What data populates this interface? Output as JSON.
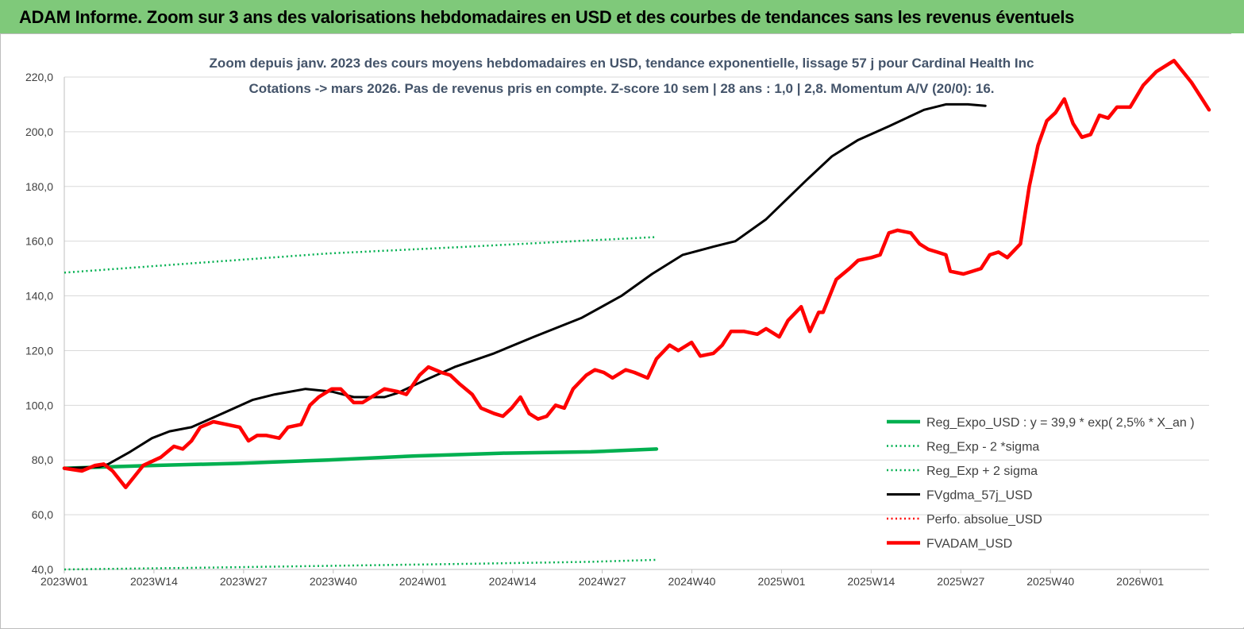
{
  "banner": {
    "title": "ADAM Informe. Zoom sur 3 ans des valorisations hebdomadaires en USD et des courbes de tendances sans les revenus éventuels"
  },
  "chart_data": {
    "type": "line",
    "title": "Zoom depuis janv. 2023 des cours moyens hebdomadaires en USD, tendance exponentielle, lissage 57 j pour Cardinal Health Inc",
    "subtitle": "Cotations -> mars 2026. Pas de revenus pris en compte. Z-score 10 sem | 28 ans : 1,0 | 2,8. Momentum A/V (20/0): 16.",
    "ylim": [
      40,
      220
    ],
    "yticks": [
      "220,0",
      "200,0",
      "180,0",
      "160,0",
      "140,0",
      "120,0",
      "100,0",
      "80,0",
      "60,0",
      "40,0"
    ],
    "ytick_values": [
      220,
      200,
      180,
      160,
      140,
      120,
      100,
      80,
      60,
      40
    ],
    "xticks": [
      "2023W01",
      "2023W14",
      "2023W27",
      "2023W40",
      "2024W01",
      "2024W14",
      "2024W27",
      "2024W40",
      "2025W01",
      "2025W14",
      "2025W27",
      "2025W40",
      "2026W01"
    ],
    "xtick_index": [
      0,
      13,
      26,
      39,
      52,
      65,
      78,
      91,
      104,
      117,
      130,
      143,
      156
    ],
    "x_count": 167,
    "grid": true,
    "legend_position": "bottom-right",
    "colors": {
      "reg_expo": "#00b050",
      "reg_minus": "#00b050",
      "reg_plus": "#00b050",
      "fvgdma": "#000000",
      "perfo": "#ff0000",
      "fvadam": "#ff0000"
    },
    "series": [
      {
        "key": "reg_expo",
        "name": "Reg_Expo_USD : y = 39,9 * exp( 2,5% *  X_an )",
        "style": "solid-thick",
        "points": [
          [
            0,
            77
          ],
          [
            40,
            78
          ],
          [
            80,
            78.8
          ],
          [
            120,
            80
          ],
          [
            160,
            81.5
          ],
          [
            200,
            82.5
          ],
          [
            240,
            83
          ],
          [
            270,
            84
          ]
        ]
      },
      {
        "key": "reg_minus",
        "name": "Reg_Exp - 2 *sigma",
        "style": "dotted",
        "points": [
          [
            0,
            40
          ],
          [
            60,
            40.6
          ],
          [
            120,
            41.3
          ],
          [
            180,
            42
          ],
          [
            240,
            42.8
          ],
          [
            270,
            43.5
          ]
        ]
      },
      {
        "key": "reg_plus",
        "name": "Reg_Exp + 2 sigma",
        "style": "dotted",
        "points": [
          [
            0,
            148.5
          ],
          [
            60,
            152
          ],
          [
            120,
            155.5
          ],
          [
            180,
            157.8
          ],
          [
            240,
            160.3
          ],
          [
            270,
            161.5
          ]
        ]
      },
      {
        "key": "fvgdma",
        "name": "FVgdma_57j_USD",
        "style": "solid",
        "points": [
          [
            0,
            77
          ],
          [
            16,
            77.5
          ],
          [
            20,
            78.5
          ],
          [
            30,
            83
          ],
          [
            40,
            88
          ],
          [
            48,
            90.5
          ],
          [
            58,
            92
          ],
          [
            72,
            97
          ],
          [
            86,
            102
          ],
          [
            96,
            104
          ],
          [
            110,
            106
          ],
          [
            122,
            105
          ],
          [
            132,
            103
          ],
          [
            146,
            103
          ],
          [
            152,
            104.5
          ],
          [
            164,
            109
          ],
          [
            178,
            114
          ],
          [
            196,
            119
          ],
          [
            214,
            125
          ],
          [
            236,
            132
          ],
          [
            254,
            140
          ],
          [
            268,
            148
          ],
          [
            282,
            155
          ],
          [
            296,
            158
          ],
          [
            306,
            160
          ],
          [
            320,
            168
          ],
          [
            338,
            182
          ],
          [
            350,
            191
          ],
          [
            362,
            197
          ],
          [
            376,
            202
          ],
          [
            392,
            208
          ],
          [
            402,
            210
          ],
          [
            412,
            210
          ],
          [
            420,
            209.5
          ]
        ]
      },
      {
        "key": "perfo",
        "name": "Perfo. absolue_USD",
        "style": "dotted",
        "points": []
      },
      {
        "key": "fvadam",
        "name": "FVADAM_USD",
        "style": "solid-thick",
        "points": [
          [
            0,
            77
          ],
          [
            8,
            76
          ],
          [
            14,
            78
          ],
          [
            18,
            78.5
          ],
          [
            22,
            76
          ],
          [
            26,
            72
          ],
          [
            28,
            70
          ],
          [
            32,
            74
          ],
          [
            36,
            78
          ],
          [
            44,
            81
          ],
          [
            50,
            85
          ],
          [
            54,
            84
          ],
          [
            58,
            87
          ],
          [
            62,
            92
          ],
          [
            68,
            94
          ],
          [
            74,
            93
          ],
          [
            80,
            92
          ],
          [
            84,
            87
          ],
          [
            88,
            89
          ],
          [
            92,
            89
          ],
          [
            98,
            88
          ],
          [
            102,
            92
          ],
          [
            108,
            93
          ],
          [
            112,
            100
          ],
          [
            116,
            103
          ],
          [
            122,
            106
          ],
          [
            126,
            106
          ],
          [
            132,
            101
          ],
          [
            136,
            101
          ],
          [
            142,
            104
          ],
          [
            146,
            106
          ],
          [
            152,
            105
          ],
          [
            156,
            104
          ],
          [
            162,
            111
          ],
          [
            166,
            114
          ],
          [
            172,
            112
          ],
          [
            176,
            111
          ],
          [
            180,
            108
          ],
          [
            186,
            104
          ],
          [
            190,
            99
          ],
          [
            196,
            97
          ],
          [
            200,
            96
          ],
          [
            204,
            99
          ],
          [
            208,
            103
          ],
          [
            212,
            97
          ],
          [
            216,
            95
          ],
          [
            220,
            96
          ],
          [
            224,
            100
          ],
          [
            228,
            99
          ],
          [
            232,
            106
          ],
          [
            238,
            111
          ],
          [
            242,
            113
          ],
          [
            246,
            112
          ],
          [
            250,
            110
          ],
          [
            256,
            113
          ],
          [
            260,
            112
          ],
          [
            266,
            110
          ],
          [
            270,
            117
          ],
          [
            276,
            122
          ],
          [
            280,
            120
          ],
          [
            286,
            123
          ],
          [
            290,
            118
          ],
          [
            296,
            119
          ],
          [
            300,
            122
          ],
          [
            304,
            127
          ],
          [
            310,
            127
          ],
          [
            316,
            126
          ],
          [
            320,
            128
          ],
          [
            326,
            125
          ],
          [
            330,
            131
          ],
          [
            336,
            136
          ],
          [
            340,
            127
          ],
          [
            344,
            134
          ],
          [
            346,
            134
          ],
          [
            352,
            146
          ],
          [
            358,
            150
          ],
          [
            362,
            153
          ],
          [
            368,
            154
          ],
          [
            372,
            155
          ],
          [
            376,
            163
          ],
          [
            380,
            164
          ],
          [
            386,
            163
          ],
          [
            390,
            159
          ],
          [
            394,
            157
          ],
          [
            398,
            156
          ],
          [
            402,
            155
          ],
          [
            404,
            149
          ],
          [
            410,
            148
          ],
          [
            414,
            149
          ],
          [
            418,
            150
          ],
          [
            422,
            155
          ],
          [
            426,
            156
          ],
          [
            430,
            154
          ],
          [
            436,
            159
          ],
          [
            440,
            180
          ],
          [
            444,
            195
          ],
          [
            448,
            204
          ],
          [
            452,
            207
          ],
          [
            456,
            212
          ],
          [
            460,
            203
          ],
          [
            464,
            198
          ],
          [
            468,
            199
          ],
          [
            472,
            206
          ],
          [
            476,
            205
          ],
          [
            480,
            209
          ],
          [
            486,
            209
          ],
          [
            492,
            217
          ],
          [
            498,
            222
          ],
          [
            502,
            224
          ],
          [
            506,
            226
          ],
          [
            510,
            222
          ],
          [
            514,
            218
          ],
          [
            518,
            213
          ],
          [
            522,
            208
          ]
        ]
      }
    ]
  }
}
